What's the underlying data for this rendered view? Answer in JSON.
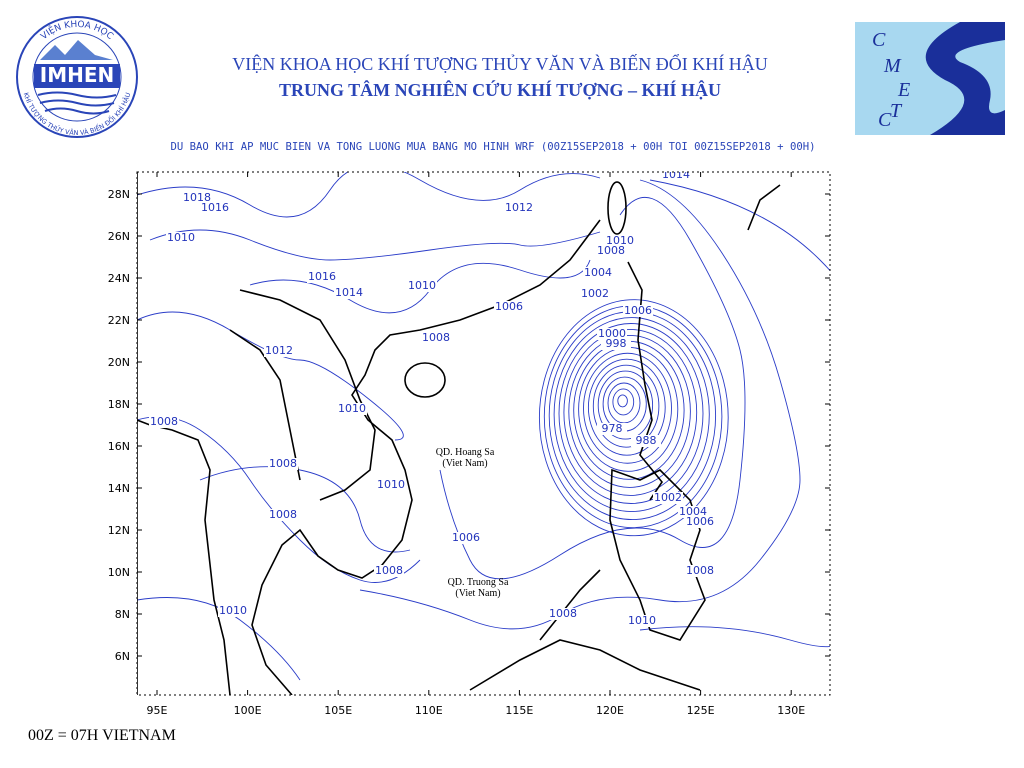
{
  "header": {
    "line1": "VIỆN KHOA HỌC KHÍ TƯỢNG THỦY VĂN VÀ BIẾN ĐỔI KHÍ HẬU",
    "line2": "TRUNG TÂM NGHIÊN CỨU KHÍ TƯỢNG – KHÍ HẬU",
    "subtitle": "DU BAO KHI AP MUC BIEN VA TONG LUONG MUA BANG MO HINH WRF (00Z15SEP2018 + 00H TOI 00Z15SEP2018 + 00H)"
  },
  "logos": {
    "left": {
      "top": "VIỆN KHOA HỌC",
      "name": "IMHEN",
      "bottom": "KHÍ TƯỢNG THỦY VĂN VÀ BIẾN ĐỔI KHÍ HẬU"
    },
    "right": {
      "letters": [
        "C",
        "M",
        "E",
        "T",
        "C"
      ]
    }
  },
  "map": {
    "lat_labels": [
      "28N",
      "26N",
      "24N",
      "22N",
      "20N",
      "18N",
      "16N",
      "14N",
      "12N",
      "10N",
      "8N",
      "6N"
    ],
    "lon_labels": [
      "95E",
      "100E",
      "105E",
      "110E",
      "115E",
      "120E",
      "125E",
      "130E"
    ],
    "place_labels": [
      {
        "name": "QD. Hoang Sa",
        "country": "(Viet Nam)"
      },
      {
        "name": "QD. Truong Sa",
        "country": "(Viet Nam)"
      }
    ],
    "isobar_labels": [
      1018,
      1016,
      1010,
      1016,
      1014,
      1012,
      1010,
      1012,
      1014,
      1010,
      1008,
      1004,
      1002,
      1006,
      1006,
      1000,
      998,
      1008,
      1010,
      1008,
      1008,
      1010,
      1008,
      978,
      988,
      1002,
      1004,
      1006,
      1006,
      1008,
      1008,
      1008,
      1010,
      1010
    ]
  },
  "footer": "00Z = 07H VIETNAM"
}
